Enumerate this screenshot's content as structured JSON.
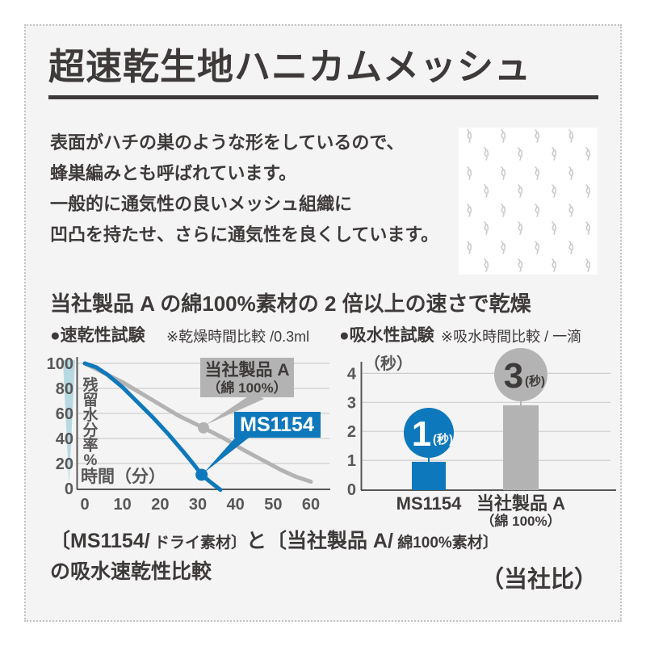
{
  "title": "超速乾生地ハニカムメッシュ",
  "intro": {
    "lines": [
      "表面がハチの巣のような形をしているので、",
      "蜂巣編みとも呼ばれています。",
      "一般的に通気性の良いメッシュ組織に",
      "凹凸を持たせ、さらに通気性を良くしています。"
    ]
  },
  "headline": "当社製品 A の綿100%素材の 2 倍以上の速さで乾燥",
  "tests": {
    "dry": {
      "label": "●速乾性試験",
      "note": "※乾燥時間比較 /0.3ml"
    },
    "absorb": {
      "label": "●吸水性試験",
      "note": "※吸水時間比較 / 一滴"
    }
  },
  "footer": {
    "line1_parts": [
      "〔MS1154/",
      " ドライ素材〕",
      "と〔当社製品 A/",
      " 綿100%素材〕"
    ],
    "line2": "の吸水速乾性比較",
    "note": "（当社比）"
  },
  "colors": {
    "accent_blue": "#0e78bc",
    "series_gray": "#b3b3b3",
    "wedge_blue": "#b7d9e2",
    "ink": "#3e3a39",
    "axis_gray": "#595757",
    "grid_gray": "#cdcdcd"
  },
  "chart_data": [
    {
      "type": "line",
      "title": "速乾性試験",
      "note": "※乾燥時間比較 /0.3ml",
      "xlabel": "時間（分）",
      "ylabel": "残留水分率%",
      "x_ticks": [
        0,
        10,
        20,
        30,
        40,
        50,
        60
      ],
      "y_ticks": [
        0,
        20,
        40,
        60,
        80,
        100
      ],
      "xlim": [
        0,
        63
      ],
      "ylim": [
        0,
        100
      ],
      "grid": true,
      "legend_position": "inline-callouts",
      "series": [
        {
          "name": "当社製品 A（綿 100%）",
          "name_lines": [
            "当社製品 A",
            "（綿 100%）"
          ],
          "color": "#b3b3b3",
          "points": [
            [
              0,
              100
            ],
            [
              5,
              92.5
            ],
            [
              10,
              85
            ],
            [
              15,
              76
            ],
            [
              20,
              67
            ],
            [
              25,
              58
            ],
            [
              31.5,
              48.5
            ],
            [
              37,
              40
            ],
            [
              42,
              31
            ],
            [
              47,
              23
            ],
            [
              52,
              15
            ],
            [
              56,
              9.5
            ],
            [
              60,
              5.5
            ]
          ],
          "marker": [
            31.5,
            48.5
          ]
        },
        {
          "name": "MS1154",
          "name_lines": [
            "MS1154"
          ],
          "color": "#0e78bc",
          "points": [
            [
              0,
              100
            ],
            [
              3,
              97
            ],
            [
              6,
              91
            ],
            [
              10,
              81
            ],
            [
              14,
              69
            ],
            [
              18,
              57
            ],
            [
              22,
              44
            ],
            [
              26,
              30
            ],
            [
              29,
              19
            ],
            [
              31,
              11
            ],
            [
              33,
              6
            ],
            [
              36,
              -1
            ]
          ],
          "marker": [
            31,
            11
          ]
        }
      ]
    },
    {
      "type": "bar",
      "title": "吸水性試験",
      "note": "※吸水時間比較 / 一滴",
      "unit_label": "（秒）",
      "y_ticks": [
        0,
        1,
        2,
        3,
        4
      ],
      "ylim": [
        0,
        4.3
      ],
      "grid": true,
      "categories": [
        [
          "MS1154"
        ],
        [
          "当社製品 A",
          "（綿 100%）"
        ]
      ],
      "values": [
        1,
        3
      ],
      "bar_heights": [
        0.95,
        2.9
      ],
      "badge_unit": "(秒)",
      "colors": [
        "#0e78bc",
        "#b3b3b3"
      ],
      "badge_text_colors": [
        "#ffffff",
        "#3e3a39"
      ]
    }
  ]
}
